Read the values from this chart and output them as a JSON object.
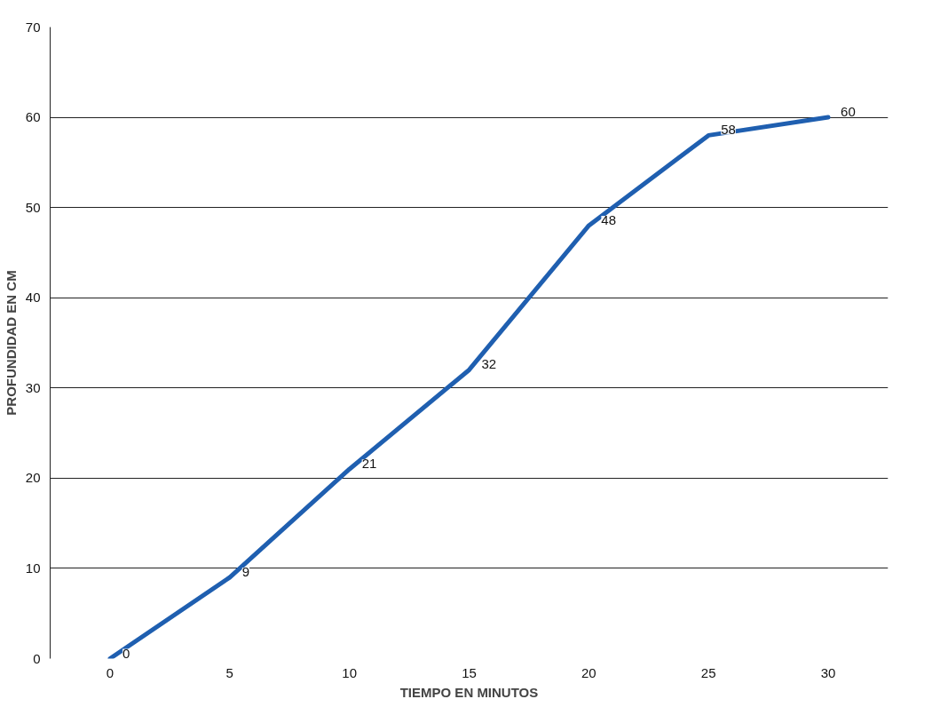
{
  "chart_data": {
    "type": "line",
    "xlabel": "TIEMPO EN MINUTOS",
    "ylabel": "PROFUNDIDAD EN CM",
    "categories": [
      "0",
      "5",
      "10",
      "15",
      "20",
      "25",
      "30"
    ],
    "series": [
      {
        "color": "#1f5fb0",
        "values": [
          0,
          9,
          21,
          32,
          48,
          58,
          60
        ]
      }
    ],
    "ylim": [
      0,
      70
    ],
    "yticks": [
      0,
      10,
      20,
      30,
      40,
      50,
      60,
      70
    ],
    "grid": "y",
    "data_labels": true,
    "marker": "none",
    "line_style": "solid"
  }
}
